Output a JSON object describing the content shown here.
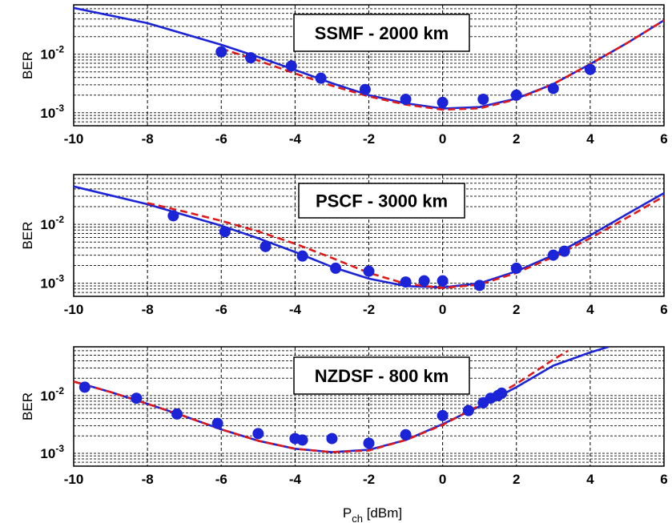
{
  "figure": {
    "xlabel_main": "P",
    "xlabel_sub": "ch",
    "xlabel_unit": " [dBm]"
  },
  "chart_data": [
    {
      "type": "line",
      "title": "SSMF - 2000 km",
      "ylabel": "BER",
      "yscale": "log",
      "xlim": [
        -10,
        6
      ],
      "ylim": [
        0.0006,
        0.07
      ],
      "xticks": [
        -10,
        -8,
        -6,
        -4,
        -2,
        0,
        2,
        4,
        6
      ],
      "yticks": [
        {
          "value": 0.01,
          "base": "10",
          "exp": "-2"
        },
        {
          "value": 0.001,
          "base": "10",
          "exp": "-3"
        }
      ],
      "grid": true,
      "colors": {
        "blue": "#1b24d6",
        "red": "#e01a1a"
      },
      "series": [
        {
          "style": "solid-blue",
          "x": [
            -10,
            -8,
            -6,
            -5,
            -4,
            -3,
            -2,
            -1,
            0,
            1,
            2,
            3,
            4,
            5,
            6
          ],
          "y": [
            0.062,
            0.034,
            0.0145,
            0.009,
            0.0054,
            0.0032,
            0.002,
            0.00145,
            0.00118,
            0.00125,
            0.00175,
            0.0031,
            0.0068,
            0.0155,
            0.038
          ]
        },
        {
          "style": "dashed-red",
          "x": [
            -6,
            -5,
            -4,
            -3,
            -2,
            -1,
            0,
            1,
            2,
            3,
            4,
            5,
            6
          ],
          "y": [
            0.0125,
            0.0078,
            0.0047,
            0.0029,
            0.0019,
            0.00138,
            0.00113,
            0.00119,
            0.0017,
            0.0031,
            0.0068,
            0.0155,
            0.038
          ]
        },
        {
          "style": "markers",
          "x": [
            -6,
            -5.2,
            -4.1,
            -3.3,
            -2.1,
            -1,
            0,
            1.1,
            2,
            3,
            4
          ],
          "y": [
            0.011,
            0.0087,
            0.0063,
            0.0039,
            0.0025,
            0.0017,
            0.0015,
            0.0017,
            0.002,
            0.0026,
            0.0055
          ]
        }
      ]
    },
    {
      "type": "line",
      "title": "PSCF - 3000 km",
      "ylabel": "BER",
      "yscale": "log",
      "xlim": [
        -10,
        6
      ],
      "ylim": [
        0.0006,
        0.07
      ],
      "xticks": [
        -10,
        -8,
        -6,
        -4,
        -2,
        0,
        2,
        4,
        6
      ],
      "yticks": [
        {
          "value": 0.01,
          "base": "10",
          "exp": "-2"
        },
        {
          "value": 0.001,
          "base": "10",
          "exp": "-3"
        }
      ],
      "grid": true,
      "colors": {
        "blue": "#1b24d6",
        "red": "#e01a1a"
      },
      "series": [
        {
          "style": "solid-blue",
          "x": [
            -10,
            -8,
            -6,
            -5,
            -4,
            -3,
            -2,
            -1,
            0,
            1,
            2,
            3,
            4,
            5,
            6
          ],
          "y": [
            0.044,
            0.022,
            0.0095,
            0.0058,
            0.0034,
            0.0019,
            0.0012,
            0.0009,
            0.00085,
            0.001,
            0.0016,
            0.003,
            0.0065,
            0.015,
            0.034
          ]
        },
        {
          "style": "dashed-red",
          "x": [
            -8,
            -7,
            -6,
            -5,
            -4,
            -3,
            -2,
            -1,
            0,
            1,
            2,
            3,
            4,
            5,
            6
          ],
          "y": [
            0.023,
            0.0165,
            0.0115,
            0.0076,
            0.0047,
            0.0027,
            0.0015,
            0.00098,
            0.00083,
            0.00095,
            0.0015,
            0.0028,
            0.0058,
            0.013,
            0.03
          ]
        },
        {
          "style": "markers",
          "x": [
            -7.3,
            -5.9,
            -4.8,
            -3.8,
            -2.9,
            -2,
            -1,
            -0.5,
            0,
            1,
            2,
            3,
            3.3
          ],
          "y": [
            0.014,
            0.0075,
            0.0042,
            0.0029,
            0.0018,
            0.0016,
            0.00105,
            0.0011,
            0.0011,
            0.00092,
            0.0018,
            0.003,
            0.0035
          ]
        }
      ]
    },
    {
      "type": "line",
      "title": "NZDSF - 800 km",
      "ylabel": "BER",
      "yscale": "log",
      "xlim": [
        -10,
        6
      ],
      "ylim": [
        0.0006,
        0.07
      ],
      "xticks": [
        -10,
        -8,
        -6,
        -4,
        -2,
        0,
        2,
        4,
        6
      ],
      "yticks": [
        {
          "value": 0.01,
          "base": "10",
          "exp": "-2"
        },
        {
          "value": 0.001,
          "base": "10",
          "exp": "-3"
        }
      ],
      "grid": true,
      "colors": {
        "blue": "#1b24d6",
        "red": "#e01a1a"
      },
      "series": [
        {
          "style": "solid-blue",
          "x": [
            -10,
            -9,
            -8,
            -7,
            -6,
            -5,
            -4,
            -3,
            -2,
            -1,
            0,
            1,
            2,
            3,
            4,
            4.5
          ],
          "y": [
            0.0175,
            0.0115,
            0.0072,
            0.0044,
            0.0026,
            0.00165,
            0.0012,
            0.00105,
            0.00115,
            0.0017,
            0.0032,
            0.0065,
            0.014,
            0.033,
            0.056,
            0.07
          ]
        },
        {
          "style": "dashed-red",
          "x": [
            -10,
            -9,
            -8,
            -7,
            -6,
            -5,
            -4,
            -3,
            -2,
            -1,
            0,
            1,
            2,
            3,
            3.4
          ],
          "y": [
            0.0175,
            0.0115,
            0.0072,
            0.0044,
            0.0026,
            0.00165,
            0.0012,
            0.00105,
            0.00112,
            0.0017,
            0.0031,
            0.0068,
            0.016,
            0.042,
            0.06
          ]
        },
        {
          "style": "markers",
          "x": [
            -9.7,
            -8.3,
            -7.2,
            -6.1,
            -5,
            -4,
            -3.8,
            -3,
            -2,
            -1,
            0,
            0.7,
            1.1,
            1.3,
            1.5,
            1.6
          ],
          "y": [
            0.014,
            0.009,
            0.0048,
            0.0033,
            0.0022,
            0.0018,
            0.0017,
            0.0018,
            0.0015,
            0.0021,
            0.0045,
            0.0055,
            0.0075,
            0.009,
            0.01,
            0.011
          ]
        }
      ]
    }
  ]
}
